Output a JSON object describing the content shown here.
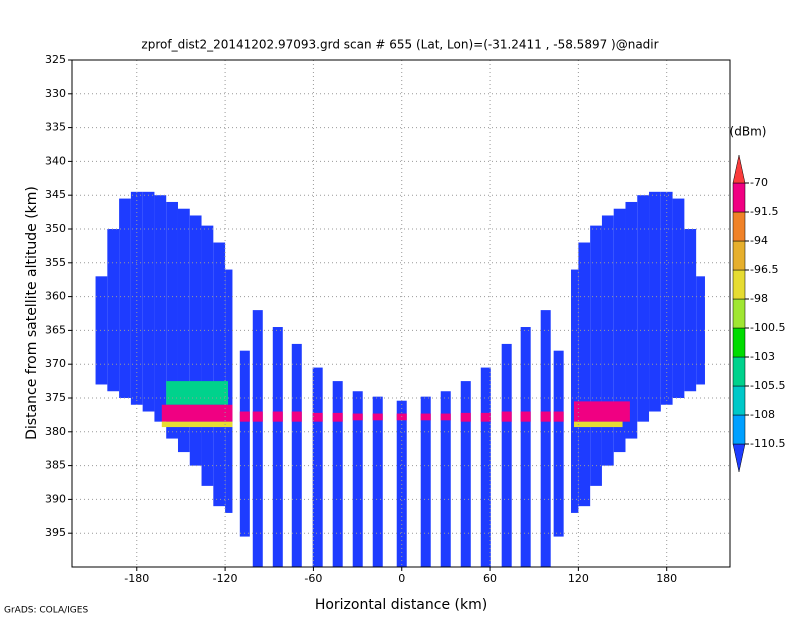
{
  "chart_data": {
    "type": "heatmap",
    "title": "zprof_dist2_20141202.97093.grd  scan # 655  (Lat, Lon)=(-31.2411 , -58.5897 )@nadir",
    "x_label": "Horizontal distance (km)",
    "y_label": "Distance from satellite altitude (km)",
    "footer": "GrADS: COLA/IGES",
    "xlim": [
      -224,
      223
    ],
    "ylim": [
      400,
      325
    ],
    "xticks": [
      -180,
      -120,
      -60,
      0,
      60,
      120,
      180
    ],
    "yticks": [
      325,
      330,
      335,
      340,
      345,
      350,
      355,
      360,
      365,
      370,
      375,
      380,
      385,
      390,
      395
    ],
    "grid": true,
    "colorbar": {
      "label": "(dBm)",
      "levels": [
        -110.5,
        -108,
        -105.5,
        -103,
        -100.5,
        -98,
        -96.5,
        -94,
        -91.5,
        -70
      ],
      "colors": [
        "#1e3cff",
        "#00a0ff",
        "#00c8c8",
        "#00d28c",
        "#00dc00",
        "#a0e632",
        "#e6dc32",
        "#e6af2d",
        "#f08228",
        "#f00082",
        "#fa3c3c"
      ]
    },
    "cells": [
      {
        "x": [
          -208,
          -200
        ],
        "y": [
          357,
          373
        ],
        "value": -112
      },
      {
        "x": [
          -200,
          -192
        ],
        "y": [
          350,
          374
        ],
        "value": -112
      },
      {
        "x": [
          -192,
          -184
        ],
        "y": [
          345.5,
          375
        ],
        "value": -112
      },
      {
        "x": [
          -184,
          -176
        ],
        "y": [
          344.5,
          376
        ],
        "value": -112
      },
      {
        "x": [
          -176,
          -168
        ],
        "y": [
          344.5,
          377
        ],
        "value": -112
      },
      {
        "x": [
          -168,
          -160
        ],
        "y": [
          345,
          378.5
        ],
        "value": -112
      },
      {
        "x": [
          -160,
          -152
        ],
        "y": [
          346,
          381
        ],
        "value": -112
      },
      {
        "x": [
          -152,
          -144
        ],
        "y": [
          347,
          383
        ],
        "value": -112
      },
      {
        "x": [
          -144,
          -136
        ],
        "y": [
          348,
          385
        ],
        "value": -112
      },
      {
        "x": [
          -136,
          -128
        ],
        "y": [
          349.5,
          388
        ],
        "value": -112
      },
      {
        "x": [
          -128,
          -120
        ],
        "y": [
          352,
          391
        ],
        "value": -112
      },
      {
        "x": [
          -120,
          -115
        ],
        "y": [
          356,
          392
        ],
        "value": -112
      },
      {
        "x": [
          -110,
          -103.2
        ],
        "y": [
          368,
          395.5
        ],
        "value": -112
      },
      {
        "x": [
          -101.2,
          -94.4
        ],
        "y": [
          362,
          400
        ],
        "value": -112
      },
      {
        "x": [
          -87.6,
          -80.8
        ],
        "y": [
          364.5,
          400
        ],
        "value": -112
      },
      {
        "x": [
          -74.7,
          -67.9
        ],
        "y": [
          367,
          400
        ],
        "value": -112
      },
      {
        "x": [
          -60.5,
          -53.7
        ],
        "y": [
          370.5,
          400
        ],
        "value": -112
      },
      {
        "x": [
          -46.9,
          -40.1
        ],
        "y": [
          372.5,
          400
        ],
        "value": -112
      },
      {
        "x": [
          -33.3,
          -26.5
        ],
        "y": [
          374,
          400
        ],
        "value": -112
      },
      {
        "x": [
          -19.7,
          -12.9
        ],
        "y": [
          374.8,
          400
        ],
        "value": -112
      },
      {
        "x": [
          -3.4,
          3.4
        ],
        "y": [
          375.4,
          400
        ],
        "value": -112
      },
      {
        "x": [
          12.9,
          19.7
        ],
        "y": [
          374.8,
          400
        ],
        "value": -112
      },
      {
        "x": [
          26.5,
          33.3
        ],
        "y": [
          374,
          400
        ],
        "value": -112
      },
      {
        "x": [
          40.1,
          46.9
        ],
        "y": [
          372.5,
          400
        ],
        "value": -112
      },
      {
        "x": [
          53.7,
          60.5
        ],
        "y": [
          370.5,
          400
        ],
        "value": -112
      },
      {
        "x": [
          67.9,
          74.7
        ],
        "y": [
          367,
          400
        ],
        "value": -112
      },
      {
        "x": [
          80.8,
          87.6
        ],
        "y": [
          364.5,
          400
        ],
        "value": -112
      },
      {
        "x": [
          94.4,
          101.2
        ],
        "y": [
          362,
          400
        ],
        "value": -112
      },
      {
        "x": [
          103.2,
          110
        ],
        "y": [
          368,
          395.5
        ],
        "value": -112
      },
      {
        "x": [
          115,
          120
        ],
        "y": [
          356,
          392
        ],
        "value": -112
      },
      {
        "x": [
          120,
          128
        ],
        "y": [
          352,
          391
        ],
        "value": -112
      },
      {
        "x": [
          128,
          136
        ],
        "y": [
          349.5,
          388
        ],
        "value": -112
      },
      {
        "x": [
          136,
          144
        ],
        "y": [
          348,
          385
        ],
        "value": -112
      },
      {
        "x": [
          144,
          152
        ],
        "y": [
          347,
          383
        ],
        "value": -112
      },
      {
        "x": [
          152,
          160
        ],
        "y": [
          346,
          381
        ],
        "value": -112
      },
      {
        "x": [
          160,
          168
        ],
        "y": [
          345,
          378.5
        ],
        "value": -112
      },
      {
        "x": [
          168,
          176
        ],
        "y": [
          344.5,
          377
        ],
        "value": -112
      },
      {
        "x": [
          176,
          184
        ],
        "y": [
          344.5,
          376
        ],
        "value": -112
      },
      {
        "x": [
          184,
          192
        ],
        "y": [
          345.5,
          375
        ],
        "value": -112
      },
      {
        "x": [
          192,
          200
        ],
        "y": [
          350,
          374
        ],
        "value": -112
      },
      {
        "x": [
          200,
          206
        ],
        "y": [
          357,
          373
        ],
        "value": -112
      },
      {
        "x": [
          -160,
          -118
        ],
        "y": [
          372.5,
          376
        ],
        "value": -104
      },
      {
        "x": [
          -163,
          -115
        ],
        "y": [
          376,
          378.5
        ],
        "value": -91
      },
      {
        "x": [
          -163,
          -115
        ],
        "y": [
          378.5,
          379.3
        ],
        "value": -97
      },
      {
        "x": [
          -110,
          -103.2
        ],
        "y": [
          377,
          378.5
        ],
        "value": -91
      },
      {
        "x": [
          -101.2,
          -94.4
        ],
        "y": [
          377,
          378.5
        ],
        "value": -91
      },
      {
        "x": [
          -87.6,
          -80.8
        ],
        "y": [
          377,
          378.5
        ],
        "value": -91
      },
      {
        "x": [
          -74.7,
          -67.9
        ],
        "y": [
          377,
          378.5
        ],
        "value": -91
      },
      {
        "x": [
          -60.5,
          -53.7
        ],
        "y": [
          377.2,
          378.5
        ],
        "value": -91
      },
      {
        "x": [
          -46.9,
          -40.1
        ],
        "y": [
          377.2,
          378.5
        ],
        "value": -91
      },
      {
        "x": [
          -33.3,
          -26.5
        ],
        "y": [
          377.3,
          378.3
        ],
        "value": -91
      },
      {
        "x": [
          -19.7,
          -12.9
        ],
        "y": [
          377.3,
          378.3
        ],
        "value": -91
      },
      {
        "x": [
          -3.4,
          3.4
        ],
        "y": [
          377.3,
          378.3
        ],
        "value": -91
      },
      {
        "x": [
          12.9,
          19.7
        ],
        "y": [
          377.3,
          378.3
        ],
        "value": -91
      },
      {
        "x": [
          26.5,
          33.3
        ],
        "y": [
          377.3,
          378.3
        ],
        "value": -91
      },
      {
        "x": [
          40.1,
          46.9
        ],
        "y": [
          377.2,
          378.5
        ],
        "value": -91
      },
      {
        "x": [
          53.7,
          60.5
        ],
        "y": [
          377.2,
          378.5
        ],
        "value": -91
      },
      {
        "x": [
          67.9,
          74.7
        ],
        "y": [
          377,
          378.5
        ],
        "value": -91
      },
      {
        "x": [
          80.8,
          87.6
        ],
        "y": [
          377,
          378.5
        ],
        "value": -91
      },
      {
        "x": [
          94.4,
          101.2
        ],
        "y": [
          377,
          378.5
        ],
        "value": -91
      },
      {
        "x": [
          103.2,
          110
        ],
        "y": [
          377,
          378.5
        ],
        "value": -91
      },
      {
        "x": [
          117,
          155
        ],
        "y": [
          375.5,
          378.5
        ],
        "value": -91
      },
      {
        "x": [
          117,
          150
        ],
        "y": [
          378.5,
          379.3
        ],
        "value": -97
      }
    ]
  }
}
